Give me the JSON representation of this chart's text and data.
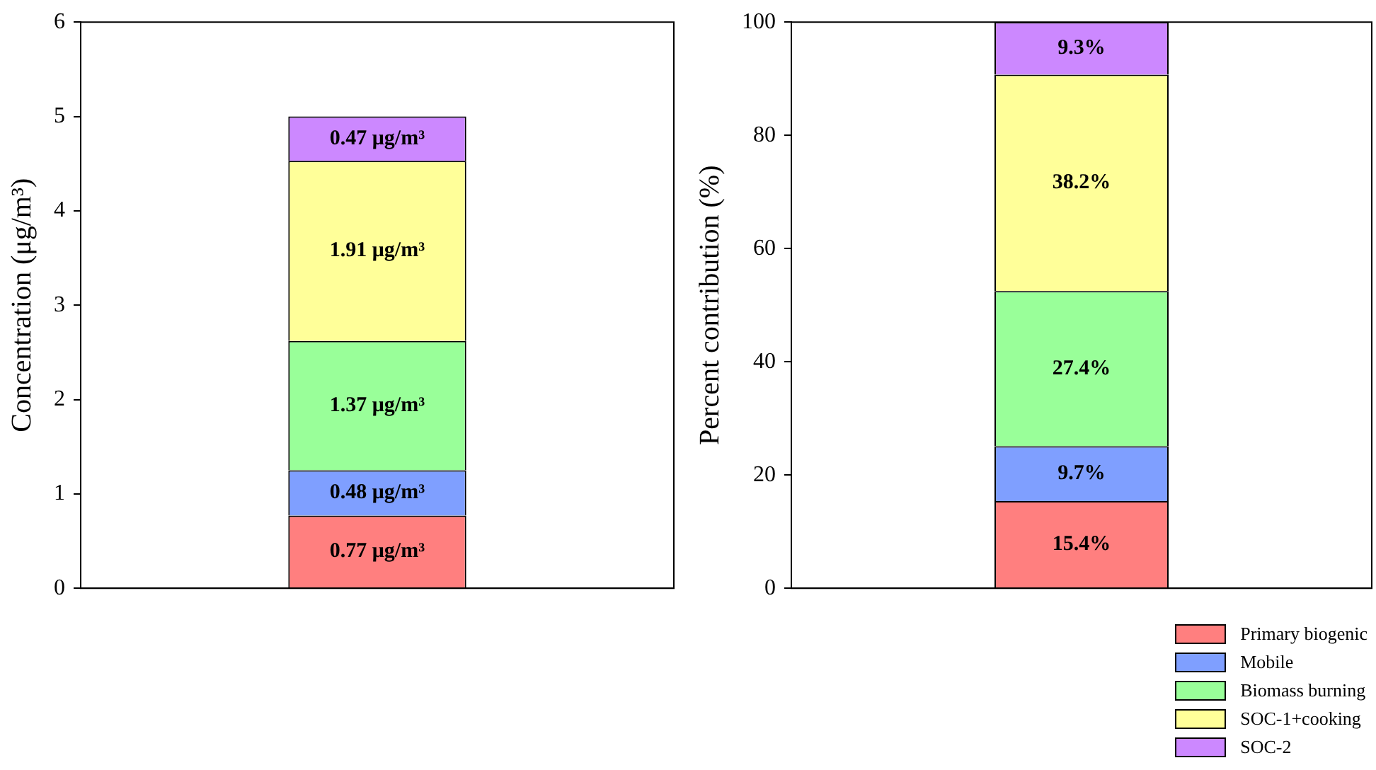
{
  "chart_data": [
    {
      "type": "bar",
      "stacked": true,
      "categories": [
        null
      ],
      "ylabel": "Concentration (μg/m³)",
      "ylim": [
        0,
        6
      ],
      "yticks": [
        0,
        1,
        2,
        3,
        4,
        5,
        6
      ],
      "grid": false,
      "legend": false,
      "series": [
        {
          "color": "#ff7f7f",
          "values": [
            0.77
          ],
          "value_labels": [
            "0.77 μg/m³"
          ]
        },
        {
          "color": "#7f9fff",
          "values": [
            0.48
          ],
          "value_labels": [
            "0.48 μg/m³"
          ]
        },
        {
          "color": "#99ff99",
          "values": [
            1.37
          ],
          "value_labels": [
            "1.37 μg/m³"
          ]
        },
        {
          "color": "#ffff99",
          "values": [
            1.91
          ],
          "value_labels": [
            "1.91 μg/m³"
          ]
        },
        {
          "color": "#cc88ff",
          "values": [
            0.47
          ],
          "value_labels": [
            "0.47 μg/m³"
          ]
        }
      ]
    },
    {
      "type": "bar",
      "stacked": true,
      "categories": [
        null
      ],
      "ylabel": "Percent contribution (%)",
      "ylim": [
        0,
        100
      ],
      "yticks": [
        0,
        20,
        40,
        60,
        80,
        100
      ],
      "grid": false,
      "legend": "bottom right",
      "series": [
        {
          "name": "Primary biogenic",
          "color": "#ff7f7f",
          "values": [
            15.4
          ],
          "value_labels": [
            "15.4%"
          ]
        },
        {
          "name": "Mobile",
          "color": "#7f9fff",
          "values": [
            9.7
          ],
          "value_labels": [
            "9.7%"
          ]
        },
        {
          "name": "Biomass burning",
          "color": "#99ff99",
          "values": [
            27.4
          ],
          "value_labels": [
            "27.4%"
          ]
        },
        {
          "name": "SOC-1+cooking",
          "color": "#ffff99",
          "values": [
            38.2
          ],
          "value_labels": [
            "38.2%"
          ]
        },
        {
          "name": "SOC-2",
          "color": "#cc88ff",
          "values": [
            9.3
          ],
          "value_labels": [
            "9.3%"
          ]
        }
      ]
    }
  ]
}
